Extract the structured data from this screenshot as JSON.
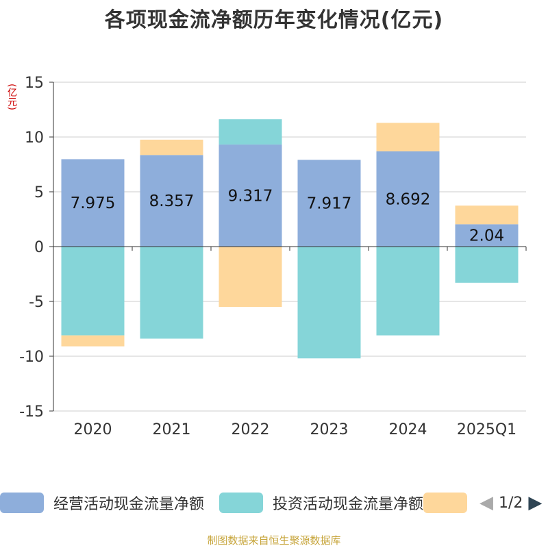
{
  "title": "各项现金流净额历年变化情况(亿元)",
  "source": "制图数据来自恒生聚源数据库",
  "legend": {
    "pager_text": "1/2",
    "prev_icon": "triangle-left-icon",
    "next_icon": "triangle-right-icon"
  },
  "chart_data": {
    "type": "bar",
    "stacked": true,
    "unit_label": "(亿元)",
    "categories": [
      "2020",
      "2021",
      "2022",
      "2023",
      "2024",
      "2025Q1"
    ],
    "ylim": [
      -15,
      15
    ],
    "yticks": [
      15,
      10,
      5,
      0,
      -5,
      -10,
      -15
    ],
    "grid": true,
    "legend_position": "bottom",
    "series": [
      {
        "name": "经营活动现金流量净额",
        "color": "#8eaedb",
        "values": [
          7.975,
          8.357,
          9.317,
          7.917,
          8.692,
          2.04
        ],
        "data_labels": [
          "7.975",
          "8.357",
          "9.317",
          "7.917",
          "8.692",
          "2.04"
        ]
      },
      {
        "name": "投资活动现金流量净额",
        "color": "#85d5d8",
        "values": [
          -8.1,
          -8.4,
          2.3,
          -10.2,
          -8.1,
          -3.3
        ]
      },
      {
        "name": "",
        "color": "#fed79b",
        "values": [
          -1.0,
          1.4,
          -5.5,
          0,
          2.6,
          1.7
        ]
      }
    ]
  }
}
